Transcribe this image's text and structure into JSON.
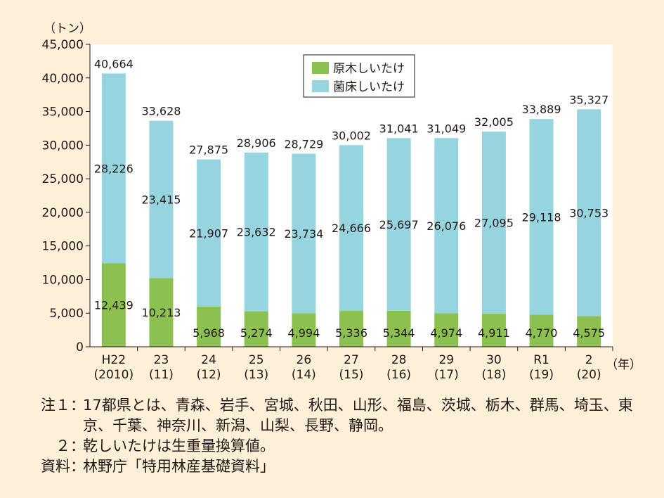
{
  "chart_data": {
    "type": "bar",
    "stacked": true,
    "y_unit_label": "（トン）",
    "x_unit_label": "（年）",
    "ylim": [
      0,
      45000
    ],
    "y_ticks": [
      "0",
      "5,000",
      "10,000",
      "15,000",
      "20,000",
      "25,000",
      "30,000",
      "35,000",
      "40,000",
      "45,000"
    ],
    "categories": [
      {
        "line1": "H22",
        "line2": "(2010)"
      },
      {
        "line1": "23",
        "line2": "(11)"
      },
      {
        "line1": "24",
        "line2": "(12)"
      },
      {
        "line1": "25",
        "line2": "(13)"
      },
      {
        "line1": "26",
        "line2": "(14)"
      },
      {
        "line1": "27",
        "line2": "(15)"
      },
      {
        "line1": "28",
        "line2": "(16)"
      },
      {
        "line1": "29",
        "line2": "(17)"
      },
      {
        "line1": "30",
        "line2": "(18)"
      },
      {
        "line1": "R1",
        "line2": "(19)"
      },
      {
        "line1": "2",
        "line2": "(20)"
      }
    ],
    "series": [
      {
        "name": "原木しいたけ",
        "color": "#8cc152",
        "values": [
          12439,
          10213,
          5968,
          5274,
          4994,
          5336,
          5344,
          4974,
          4911,
          4770,
          4575
        ],
        "labels": [
          "12,439",
          "10,213",
          "5,968",
          "5,274",
          "4,994",
          "5,336",
          "5,344",
          "4,974",
          "4,911",
          "4,770",
          "4,575"
        ]
      },
      {
        "name": "菌床しいたけ",
        "color": "#96d4e0",
        "values": [
          28226,
          23415,
          21907,
          23632,
          23734,
          24666,
          25697,
          26076,
          27095,
          29118,
          30753
        ],
        "labels": [
          "28,226",
          "23,415",
          "21,907",
          "23,632",
          "23,734",
          "24,666",
          "25,697",
          "26,076",
          "27,095",
          "29,118",
          "30,753"
        ]
      }
    ],
    "totals": [
      "40,664",
      "33,628",
      "27,875",
      "28,906",
      "28,729",
      "30,002",
      "31,041",
      "31,049",
      "32,005",
      "33,889",
      "35,327"
    ],
    "legend_position": "top-center",
    "grid": false
  },
  "notes": [
    {
      "label": "注１",
      "sep": "：",
      "text": "17都県とは、青森、岩手、宮城、秋田、山形、福島、茨城、栃木、群馬、埼玉、東京、千葉、神奈川、新潟、山梨、長野、静岡。"
    },
    {
      "label": "２",
      "sep": "：",
      "text": "乾しいたけは生重量換算値。"
    },
    {
      "label": "資料",
      "sep": "：",
      "text": "林野庁「特用林産基礎資料」"
    }
  ]
}
